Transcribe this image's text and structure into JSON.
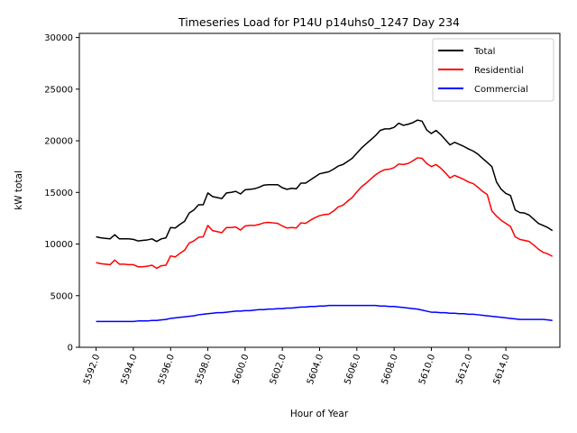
{
  "chart_data": {
    "type": "line",
    "title": "Timeseries Load for P14U p14uhs0_1247  Day 234",
    "xlabel": "Hour of Year",
    "ylabel": "kW total",
    "xlim": [
      5591.1,
      5616.9
    ],
    "ylim": [
      0,
      30400
    ],
    "xticks": [
      5592,
      5594,
      5596,
      5598,
      5600,
      5602,
      5604,
      5606,
      5608,
      5610,
      5612,
      5614
    ],
    "xtick_labels": [
      "5592.0",
      "5594.0",
      "5596.0",
      "5598.0",
      "5600.0",
      "5602.0",
      "5604.0",
      "5606.0",
      "5608.0",
      "5610.0",
      "5612.0",
      "5614.0"
    ],
    "yticks": [
      0,
      5000,
      10000,
      15000,
      20000,
      25000,
      30000
    ],
    "ytick_labels": [
      "0",
      "5000",
      "10000",
      "15000",
      "20000",
      "25000",
      "30000"
    ],
    "legend_position": "top-right",
    "x_start": 5592,
    "x_step": 0.25,
    "series": [
      {
        "name": "Total",
        "color": "#000000",
        "values": [
          10700,
          10600,
          10550,
          10500,
          10900,
          10500,
          10500,
          10500,
          10450,
          10300,
          10350,
          10400,
          10500,
          10250,
          10500,
          10600,
          11600,
          11550,
          11900,
          12200,
          13000,
          13300,
          13800,
          13800,
          14950,
          14600,
          14500,
          14400,
          14950,
          15000,
          15100,
          14850,
          15250,
          15300,
          15350,
          15500,
          15700,
          15750,
          15750,
          15750,
          15450,
          15300,
          15400,
          15350,
          15900,
          15900,
          16200,
          16500,
          16800,
          16900,
          17000,
          17250,
          17550,
          17700,
          18000,
          18300,
          18800,
          19300,
          19700,
          20100,
          20500,
          21000,
          21150,
          21150,
          21300,
          21700,
          21500,
          21600,
          21750,
          22000,
          21900,
          21050,
          20700,
          21000,
          20600,
          20100,
          19600,
          19850,
          19650,
          19450,
          19200,
          19000,
          18700,
          18300,
          17900,
          17500,
          16000,
          15300,
          14900,
          14700,
          13300,
          13050,
          13000,
          12800,
          12400,
          12000,
          11800,
          11600,
          11300
        ]
      },
      {
        "name": "Residential",
        "color": "#ff0000",
        "values": [
          8200,
          8100,
          8050,
          8000,
          8450,
          8050,
          8050,
          8000,
          8000,
          7800,
          7800,
          7850,
          7950,
          7650,
          7900,
          7950,
          8850,
          8750,
          9100,
          9400,
          10100,
          10300,
          10650,
          10700,
          11800,
          11300,
          11200,
          11100,
          11600,
          11600,
          11650,
          11350,
          11750,
          11800,
          11800,
          11900,
          12050,
          12100,
          12050,
          12000,
          11750,
          11550,
          11600,
          11550,
          12050,
          12000,
          12300,
          12550,
          12750,
          12850,
          12900,
          13200,
          13600,
          13750,
          14150,
          14500,
          15050,
          15550,
          15900,
          16300,
          16700,
          17000,
          17200,
          17250,
          17400,
          17750,
          17700,
          17800,
          18050,
          18350,
          18300,
          17800,
          17500,
          17700,
          17350,
          16900,
          16400,
          16650,
          16450,
          16250,
          16000,
          15850,
          15500,
          15100,
          14800,
          13200,
          12700,
          12300,
          12000,
          11700,
          10700,
          10450,
          10350,
          10250,
          9900,
          9500,
          9200,
          9050,
          8800
        ]
      },
      {
        "name": "Commercial",
        "color": "#0000ff",
        "values": [
          2500,
          2500,
          2500,
          2500,
          2500,
          2500,
          2500,
          2500,
          2500,
          2550,
          2550,
          2550,
          2600,
          2600,
          2650,
          2700,
          2800,
          2850,
          2900,
          2950,
          3000,
          3050,
          3150,
          3200,
          3250,
          3300,
          3350,
          3350,
          3400,
          3450,
          3500,
          3500,
          3550,
          3550,
          3600,
          3650,
          3650,
          3700,
          3700,
          3750,
          3750,
          3800,
          3800,
          3850,
          3900,
          3900,
          3950,
          3950,
          4000,
          4000,
          4050,
          4050,
          4050,
          4050,
          4050,
          4050,
          4050,
          4050,
          4050,
          4050,
          4050,
          4000,
          4000,
          3950,
          3950,
          3900,
          3850,
          3800,
          3750,
          3700,
          3600,
          3500,
          3400,
          3400,
          3350,
          3350,
          3300,
          3300,
          3250,
          3250,
          3200,
          3200,
          3150,
          3100,
          3050,
          3000,
          2950,
          2900,
          2850,
          2800,
          2750,
          2700,
          2700,
          2700,
          2700,
          2700,
          2700,
          2650,
          2600
        ]
      }
    ]
  }
}
